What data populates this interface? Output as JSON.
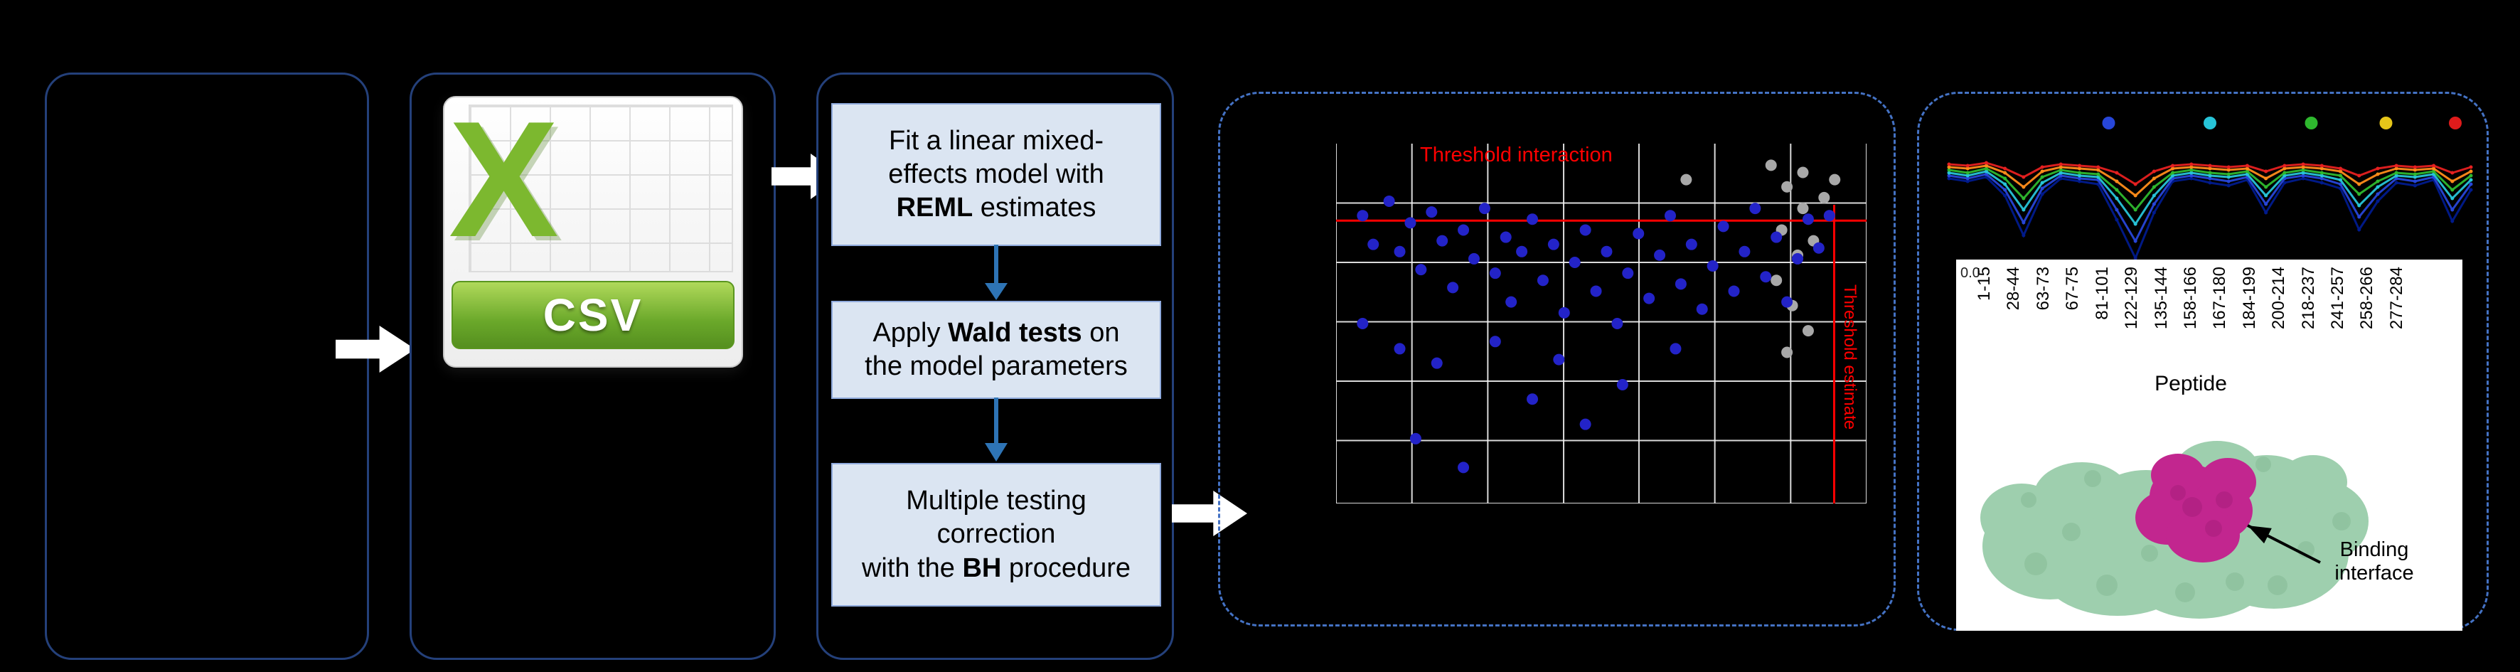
{
  "figure": {
    "csv": {
      "banner": "CSV",
      "logo_letter": "X"
    },
    "steps": [
      {
        "name": "fit-model",
        "lines": [
          [
            {
              "t": "Fit a linear mixed-"
            }
          ],
          [
            {
              "t": "effects model with"
            }
          ],
          [
            {
              "t": "REML",
              "b": 1
            },
            {
              "t": " estimates"
            }
          ]
        ]
      },
      {
        "name": "wald-tests",
        "lines": [
          [
            {
              "t": "Apply "
            },
            {
              "t": "Wald tests",
              "b": 1
            },
            {
              "t": " on"
            }
          ],
          [
            {
              "t": "the model parameters"
            }
          ]
        ]
      },
      {
        "name": "bh-correction",
        "lines": [
          [
            {
              "t": "Multiple testing"
            }
          ],
          [
            {
              "t": "correction"
            }
          ],
          [
            {
              "t": "with the "
            },
            {
              "t": "BH",
              "b": 1
            },
            {
              "t": " procedure"
            }
          ]
        ]
      }
    ],
    "scatter": {
      "threshold_interaction": "Threshold interaction",
      "threshold_estimate": "Threshold estimate",
      "colors": {
        "points": "#2323c8",
        "nonsig": "#a8a8a8",
        "threshold": "#ff0000",
        "grid": "#f2f2f2"
      },
      "grid_x": [
        0,
        0.143,
        0.286,
        0.429,
        0.571,
        0.714,
        0.857,
        1
      ],
      "grid_y": [
        0.165,
        0.33,
        0.495,
        0.66,
        0.825,
        1
      ],
      "red_hline_y": 0.214,
      "red_vline_x": 0.939,
      "points_blue": [
        [
          0.05,
          0.2
        ],
        [
          0.07,
          0.28
        ],
        [
          0.1,
          0.16
        ],
        [
          0.12,
          0.3
        ],
        [
          0.14,
          0.22
        ],
        [
          0.16,
          0.35
        ],
        [
          0.18,
          0.19
        ],
        [
          0.2,
          0.27
        ],
        [
          0.22,
          0.4
        ],
        [
          0.24,
          0.24
        ],
        [
          0.26,
          0.32
        ],
        [
          0.28,
          0.18
        ],
        [
          0.3,
          0.36
        ],
        [
          0.32,
          0.26
        ],
        [
          0.33,
          0.44
        ],
        [
          0.35,
          0.3
        ],
        [
          0.37,
          0.21
        ],
        [
          0.39,
          0.38
        ],
        [
          0.41,
          0.28
        ],
        [
          0.43,
          0.47
        ],
        [
          0.45,
          0.33
        ],
        [
          0.47,
          0.24
        ],
        [
          0.49,
          0.41
        ],
        [
          0.51,
          0.3
        ],
        [
          0.53,
          0.5
        ],
        [
          0.55,
          0.36
        ],
        [
          0.57,
          0.25
        ],
        [
          0.59,
          0.43
        ],
        [
          0.61,
          0.31
        ],
        [
          0.63,
          0.2
        ],
        [
          0.65,
          0.39
        ],
        [
          0.67,
          0.28
        ],
        [
          0.69,
          0.46
        ],
        [
          0.71,
          0.34
        ],
        [
          0.73,
          0.23
        ],
        [
          0.75,
          0.41
        ],
        [
          0.77,
          0.3
        ],
        [
          0.79,
          0.18
        ],
        [
          0.81,
          0.37
        ],
        [
          0.83,
          0.26
        ],
        [
          0.85,
          0.44
        ],
        [
          0.87,
          0.32
        ],
        [
          0.89,
          0.21
        ],
        [
          0.91,
          0.29
        ],
        [
          0.93,
          0.2
        ],
        [
          0.15,
          0.82
        ],
        [
          0.24,
          0.9
        ],
        [
          0.37,
          0.71
        ],
        [
          0.47,
          0.78
        ],
        [
          0.54,
          0.67
        ],
        [
          0.12,
          0.57
        ],
        [
          0.05,
          0.5
        ],
        [
          0.19,
          0.61
        ],
        [
          0.64,
          0.57
        ],
        [
          0.3,
          0.55
        ],
        [
          0.42,
          0.6
        ]
      ],
      "points_gray": [
        [
          0.82,
          0.06
        ],
        [
          0.85,
          0.12
        ],
        [
          0.88,
          0.18
        ],
        [
          0.84,
          0.24
        ],
        [
          0.87,
          0.31
        ],
        [
          0.83,
          0.38
        ],
        [
          0.86,
          0.45
        ],
        [
          0.89,
          0.52
        ],
        [
          0.85,
          0.58
        ],
        [
          0.88,
          0.08
        ],
        [
          0.92,
          0.15
        ],
        [
          0.9,
          0.27
        ],
        [
          0.66,
          0.1
        ],
        [
          0.94,
          0.1
        ]
      ]
    },
    "uptake": {
      "legend": [
        {
          "color": "#2746d8",
          "x": 0.31
        },
        {
          "color": "#27c4d8",
          "x": 0.5
        },
        {
          "color": "#2eb82e",
          "x": 0.69
        },
        {
          "color": "#e6c619",
          "x": 0.83
        },
        {
          "color": "#e01b1b",
          "x": 0.96
        }
      ],
      "series": [
        {
          "name": "t1",
          "color": "#001a8c",
          "values": [
            0.74,
            0.72,
            0.75,
            0.62,
            0.34,
            0.63,
            0.74,
            0.72,
            0.7,
            0.45,
            0.18,
            0.5,
            0.72,
            0.74,
            0.71,
            0.69,
            0.73,
            0.5,
            0.71,
            0.74,
            0.71,
            0.67,
            0.38,
            0.58,
            0.71,
            0.69,
            0.73,
            0.44,
            0.66
          ]
        },
        {
          "name": "t2",
          "color": "#2746d8",
          "values": [
            0.76,
            0.74,
            0.77,
            0.66,
            0.43,
            0.67,
            0.76,
            0.74,
            0.73,
            0.52,
            0.3,
            0.56,
            0.74,
            0.76,
            0.74,
            0.72,
            0.75,
            0.56,
            0.74,
            0.76,
            0.74,
            0.7,
            0.47,
            0.63,
            0.74,
            0.72,
            0.75,
            0.52,
            0.7
          ]
        },
        {
          "name": "t3",
          "color": "#27c4d8",
          "values": [
            0.78,
            0.76,
            0.79,
            0.7,
            0.52,
            0.71,
            0.78,
            0.76,
            0.75,
            0.6,
            0.42,
            0.62,
            0.76,
            0.78,
            0.76,
            0.75,
            0.77,
            0.62,
            0.76,
            0.78,
            0.76,
            0.73,
            0.55,
            0.68,
            0.76,
            0.75,
            0.77,
            0.6,
            0.73
          ]
        },
        {
          "name": "t4",
          "color": "#2eb82e",
          "values": [
            0.8,
            0.78,
            0.81,
            0.74,
            0.6,
            0.75,
            0.8,
            0.78,
            0.77,
            0.66,
            0.52,
            0.68,
            0.78,
            0.8,
            0.78,
            0.77,
            0.79,
            0.68,
            0.78,
            0.8,
            0.78,
            0.76,
            0.63,
            0.72,
            0.78,
            0.77,
            0.79,
            0.66,
            0.76
          ]
        },
        {
          "name": "t5",
          "color": "#ff8c1a",
          "values": [
            0.82,
            0.81,
            0.83,
            0.78,
            0.68,
            0.79,
            0.82,
            0.81,
            0.8,
            0.72,
            0.62,
            0.74,
            0.81,
            0.82,
            0.81,
            0.8,
            0.81,
            0.74,
            0.81,
            0.82,
            0.81,
            0.79,
            0.7,
            0.77,
            0.81,
            0.8,
            0.81,
            0.72,
            0.79
          ]
        },
        {
          "name": "t6",
          "color": "#e62020",
          "values": [
            0.84,
            0.83,
            0.85,
            0.81,
            0.75,
            0.82,
            0.84,
            0.83,
            0.82,
            0.78,
            0.7,
            0.79,
            0.83,
            0.84,
            0.83,
            0.82,
            0.83,
            0.79,
            0.83,
            0.84,
            0.83,
            0.81,
            0.76,
            0.81,
            0.83,
            0.82,
            0.83,
            0.78,
            0.82
          ]
        }
      ]
    },
    "peptide": {
      "ytick": "0.0",
      "labels": [
        "1-15",
        "28-44",
        "63-73",
        "67-75",
        "81-101",
        "122-129",
        "135-144",
        "158-166",
        "167-180",
        "184-199",
        "200-214",
        "218-237",
        "241-257",
        "258-266",
        "277-284"
      ],
      "axis_label": "Peptide",
      "binding": [
        "Binding",
        "interface"
      ]
    }
  }
}
